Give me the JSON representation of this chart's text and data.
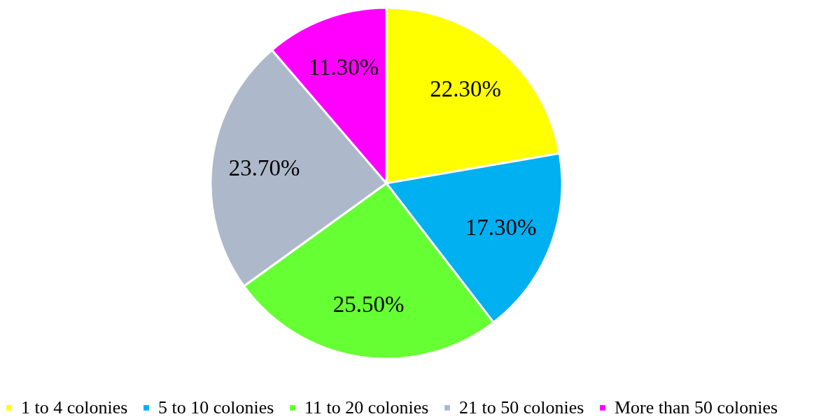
{
  "chart_data": {
    "type": "pie",
    "categories": [
      "1 to 4 colonies",
      "5 to 10 colonies",
      "11 to 20 colonies",
      "21 to 50 colonies",
      "More than 50 colonies"
    ],
    "values": [
      22.3,
      17.3,
      25.5,
      23.7,
      11.3
    ],
    "value_labels": [
      "22.30%",
      "17.30%",
      "25.50%",
      "23.70%",
      "11.30%"
    ],
    "colors": [
      "#ffff00",
      "#00b0f0",
      "#66ff33",
      "#adb9ca",
      "#ff00ff"
    ],
    "legend": "bottom"
  }
}
